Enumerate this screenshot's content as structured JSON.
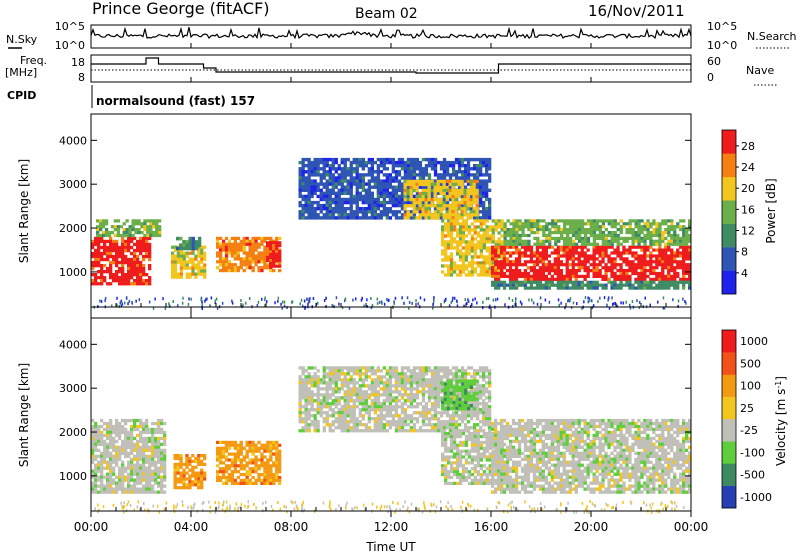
{
  "header": {
    "station": "Prince George (fitACF)",
    "beam": "Beam 02",
    "date": "16/Nov/2011"
  },
  "top_panels": {
    "nsky_label": "N.Sky",
    "nsky_ticks": [
      "10^5",
      "10^0"
    ],
    "nsearch_label": "N.Search",
    "nsearch_ticks": [
      "10^5",
      "10^0"
    ],
    "freq_label_line1": "Freq.",
    "freq_label_line2": "[MHz]",
    "freq_ticks": [
      "18",
      "8"
    ],
    "nave_label": "Nave",
    "nave_ticks": [
      "60",
      "0"
    ],
    "cpid_label": "CPID",
    "cpid_text": "normalsound (fast) 157"
  },
  "chart_data": [
    {
      "type": "heatmap",
      "name": "power",
      "ylabel": "Slant Range [km]",
      "yticks": [
        "1000",
        "2000",
        "3000",
        "4000"
      ],
      "ylim": [
        200,
        4600
      ],
      "xlim": [
        0,
        24
      ],
      "colorbar_label": "Power [dB]",
      "colorbar_ticks": [
        "4",
        "8",
        "12",
        "16",
        "20",
        "24",
        "28"
      ],
      "colorbar_range": [
        0,
        31
      ],
      "colors": [
        "#1e22ea",
        "#2f55b4",
        "#3f8c64",
        "#6bae4a",
        "#f2c51f",
        "#f57f13",
        "#ee1c1c"
      ],
      "regions": [
        {
          "t0": 0.0,
          "t1": 2.4,
          "r0": 700,
          "r1": 1800,
          "level": 28
        },
        {
          "t0": 0.2,
          "t1": 2.8,
          "r0": 1800,
          "r1": 2200,
          "level": 12
        },
        {
          "t0": 3.2,
          "t1": 4.6,
          "r0": 850,
          "r1": 1600,
          "level": 18
        },
        {
          "t0": 3.4,
          "t1": 4.4,
          "r0": 1500,
          "r1": 1800,
          "level": 8
        },
        {
          "t0": 5.0,
          "t1": 7.6,
          "r0": 1000,
          "r1": 1800,
          "level": 22
        },
        {
          "t0": 7.0,
          "t1": 7.6,
          "r0": 1100,
          "r1": 1700,
          "level": 28
        },
        {
          "t0": 8.3,
          "t1": 16.0,
          "r0": 2200,
          "r1": 3600,
          "level": 6
        },
        {
          "t0": 12.5,
          "t1": 15.5,
          "r0": 2200,
          "r1": 3100,
          "level": 16
        },
        {
          "t0": 14.0,
          "t1": 16.5,
          "r0": 900,
          "r1": 2200,
          "level": 16
        },
        {
          "t0": 16.0,
          "t1": 24.0,
          "r0": 800,
          "r1": 1600,
          "level": 28
        },
        {
          "t0": 16.0,
          "t1": 24.0,
          "r0": 600,
          "r1": 800,
          "level": 8
        },
        {
          "t0": 16.5,
          "t1": 24.0,
          "r0": 1600,
          "r1": 2200,
          "level": 14
        }
      ]
    },
    {
      "type": "heatmap",
      "name": "velocity",
      "ylabel": "Slant Range [km]",
      "yticks": [
        "1000",
        "2000",
        "3000",
        "4000"
      ],
      "ylim": [
        200,
        4600
      ],
      "xlim": [
        0,
        24
      ],
      "colorbar_label": "Velocity [m s^-1]",
      "colorbar_ticks": [
        "1000",
        "500",
        "100",
        "25",
        "-25",
        "-100",
        "-500",
        "-1000"
      ],
      "colors": [
        "#2640b3",
        "#3d8a62",
        "#5fcd3c",
        "#c0c0b8",
        "#f2c51f",
        "#f39a12",
        "#f2521a",
        "#ee1c1c"
      ],
      "regions": [
        {
          "t0": 0.0,
          "t1": 3.0,
          "r0": 600,
          "r1": 2300,
          "level": 3
        },
        {
          "t0": 3.3,
          "t1": 4.6,
          "r0": 700,
          "r1": 1500,
          "level": 5
        },
        {
          "t0": 5.0,
          "t1": 7.6,
          "r0": 800,
          "r1": 1800,
          "level": 5
        },
        {
          "t0": 8.3,
          "t1": 16.0,
          "r0": 2000,
          "r1": 3500,
          "level": 3
        },
        {
          "t0": 14.0,
          "t1": 15.5,
          "r0": 2500,
          "r1": 3200,
          "level": 2
        },
        {
          "t0": 14.0,
          "t1": 16.5,
          "r0": 800,
          "r1": 2000,
          "level": 3
        },
        {
          "t0": 16.0,
          "t1": 24.0,
          "r0": 600,
          "r1": 2300,
          "level": 3
        }
      ]
    }
  ],
  "x_axis": {
    "ticks": [
      "00:00",
      "04:00",
      "08:00",
      "12:00",
      "16:00",
      "20:00",
      "00:00"
    ],
    "label": "Time UT"
  }
}
